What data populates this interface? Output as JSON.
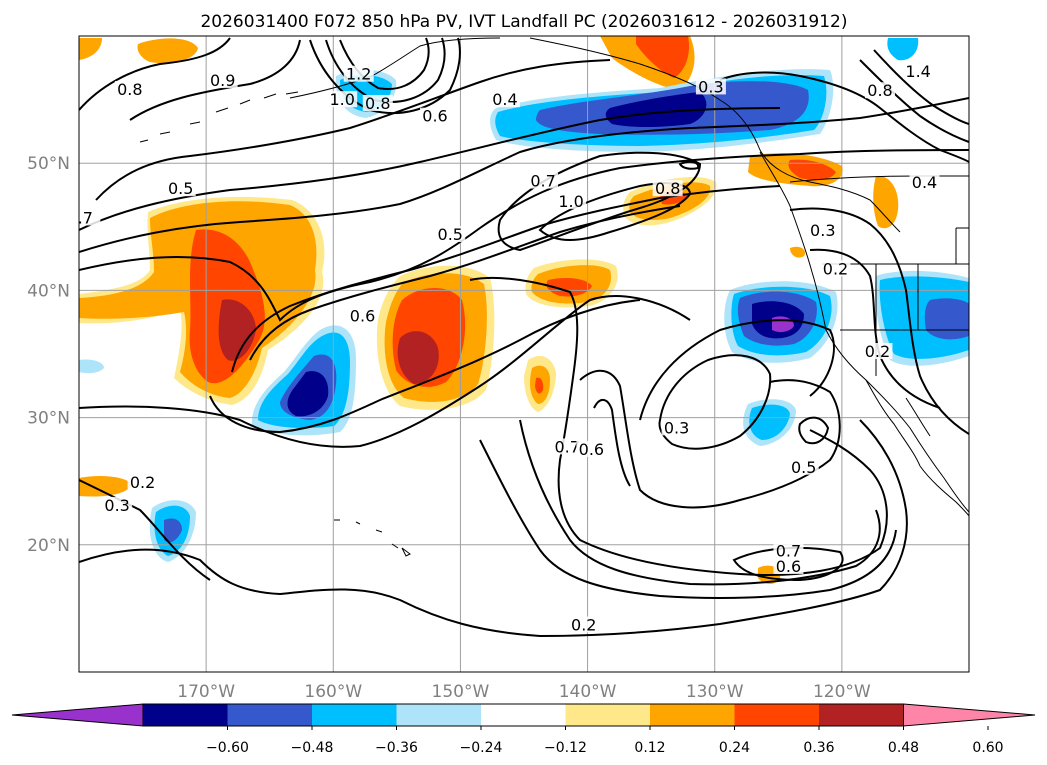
{
  "title": "2026031400 F072 850 hPa PV, IVT Landfall PC (2026031612 - 2026031912)",
  "map": {
    "lon_range": [
      -180,
      -110
    ],
    "lat_range": [
      10,
      60
    ],
    "lon_ticks": [
      {
        "value": -170,
        "label": "170°W"
      },
      {
        "value": -160,
        "label": "160°W"
      },
      {
        "value": -150,
        "label": "150°W"
      },
      {
        "value": -140,
        "label": "140°W"
      },
      {
        "value": -130,
        "label": "130°W"
      },
      {
        "value": -120,
        "label": "120°W"
      }
    ],
    "lat_ticks": [
      {
        "value": 50,
        "label": "50°N"
      },
      {
        "value": 40,
        "label": "40°N"
      },
      {
        "value": 30,
        "label": "30°N"
      },
      {
        "value": 20,
        "label": "20°N"
      }
    ],
    "grid": true,
    "colors": {
      "n060": "#9932cc",
      "n048": "#00008b",
      "n036": "#3558cc",
      "n024": "#00bfff",
      "n012": "#aee4fa",
      "p012": "#ffe88a",
      "p024": "#ffa500",
      "p036": "#ff4500",
      "p048": "#b22222",
      "p060": "#ff85a8"
    }
  },
  "colorbar": {
    "ticks": [
      "−0.60",
      "−0.48",
      "−0.36",
      "−0.24",
      "−0.12",
      "0.12",
      "0.24",
      "0.36",
      "0.48",
      "0.60"
    ],
    "colors": [
      "#9932cc",
      "#00008b",
      "#3558cc",
      "#00bfff",
      "#aee4fa",
      "#ffffff",
      "#ffe88a",
      "#ffa500",
      "#ff4500",
      "#b22222",
      "#ff85a8"
    ],
    "extend": "both"
  },
  "contour_labels": [
    {
      "text": "0.5",
      "lon": -172,
      "lat": 47.8
    },
    {
      "text": ".7",
      "lon": -179.5,
      "lat": 45.5
    },
    {
      "text": "0.8",
      "lon": -176,
      "lat": 55.6
    },
    {
      "text": "0.9",
      "lon": -168.7,
      "lat": 56.3
    },
    {
      "text": "1.2",
      "lon": -158,
      "lat": 56.8
    },
    {
      "text": "1.0",
      "lon": -159.3,
      "lat": 54.8
    },
    {
      "text": "0.8",
      "lon": -156.5,
      "lat": 54.5
    },
    {
      "text": "0.6",
      "lon": -152,
      "lat": 53.5
    },
    {
      "text": "0.4",
      "lon": -146.5,
      "lat": 54.8
    },
    {
      "text": "0.3",
      "lon": -130.3,
      "lat": 55.8
    },
    {
      "text": "0.7",
      "lon": -143.5,
      "lat": 48.4
    },
    {
      "text": "1.0",
      "lon": -141.3,
      "lat": 46.8
    },
    {
      "text": "0.8",
      "lon": -133.7,
      "lat": 47.8
    },
    {
      "text": "0.5",
      "lon": -150.8,
      "lat": 44.2
    },
    {
      "text": "0.6",
      "lon": -157.7,
      "lat": 37.8
    },
    {
      "text": "0.4",
      "lon": -113.5,
      "lat": 48.3
    },
    {
      "text": "0.3",
      "lon": -121.5,
      "lat": 44.5
    },
    {
      "text": "0.2",
      "lon": -120.5,
      "lat": 41.5
    },
    {
      "text": "0.2",
      "lon": -117.2,
      "lat": 35
    },
    {
      "text": "0.3",
      "lon": -133,
      "lat": 29
    },
    {
      "text": "0.7",
      "lon": -141.6,
      "lat": 27.5
    },
    {
      "text": "0.6",
      "lon": -139.7,
      "lat": 27.3
    },
    {
      "text": "0.5",
      "lon": -123,
      "lat": 25.9
    },
    {
      "text": "0.2",
      "lon": -175,
      "lat": 24.7
    },
    {
      "text": "0.3",
      "lon": -177,
      "lat": 22.9
    },
    {
      "text": "0.7",
      "lon": -124.2,
      "lat": 19.3
    },
    {
      "text": "0.6",
      "lon": -124.2,
      "lat": 18.1
    },
    {
      "text": "0.2",
      "lon": -140.3,
      "lat": 13.5
    },
    {
      "text": "1.4",
      "lon": -114,
      "lat": 57
    },
    {
      "text": "0.8",
      "lon": -117,
      "lat": 55.5
    }
  ]
}
